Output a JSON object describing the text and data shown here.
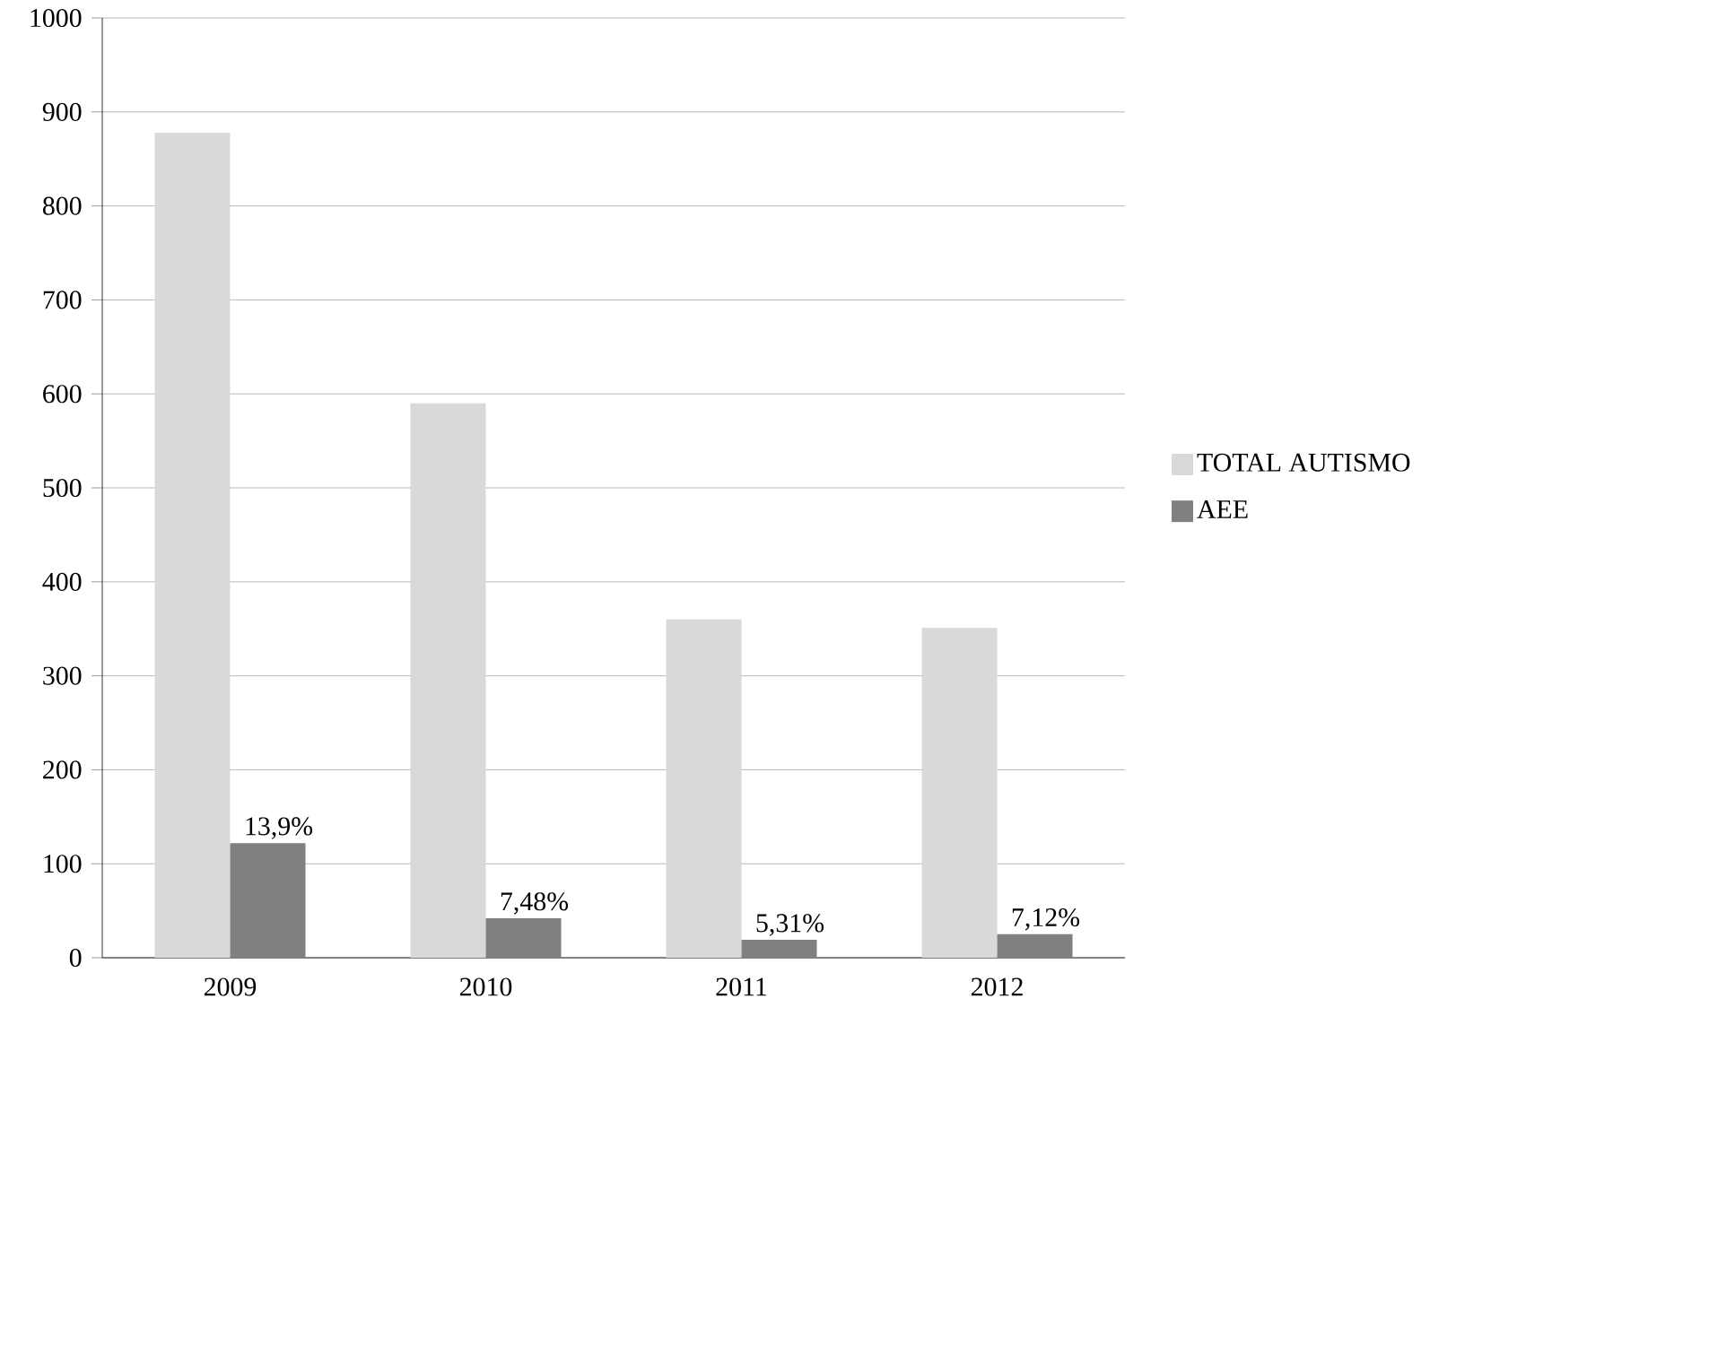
{
  "chart_data": {
    "type": "bar",
    "categories": [
      "2009",
      "2010",
      "2011",
      "2012"
    ],
    "series": [
      {
        "name": "TOTAL AUTISMO",
        "color": "#d9d9d9",
        "values": [
          878,
          590,
          360,
          351
        ]
      },
      {
        "name": "AEE",
        "color": "#808080",
        "values": [
          122,
          42,
          19,
          25
        ]
      }
    ],
    "annotations": [
      {
        "text": "13,9%",
        "x": "2009",
        "y": 122
      },
      {
        "text": "7,48%",
        "x": "2010",
        "y": 42
      },
      {
        "text": "5,31%",
        "x": "2011",
        "y": 19
      },
      {
        "text": "7,12%",
        "x": "2012",
        "y": 25
      }
    ],
    "ylim": [
      0,
      1000
    ],
    "yticks": [
      0,
      100,
      200,
      300,
      400,
      500,
      600,
      700,
      800,
      900,
      1000
    ],
    "grid": "y",
    "legend": "right"
  }
}
